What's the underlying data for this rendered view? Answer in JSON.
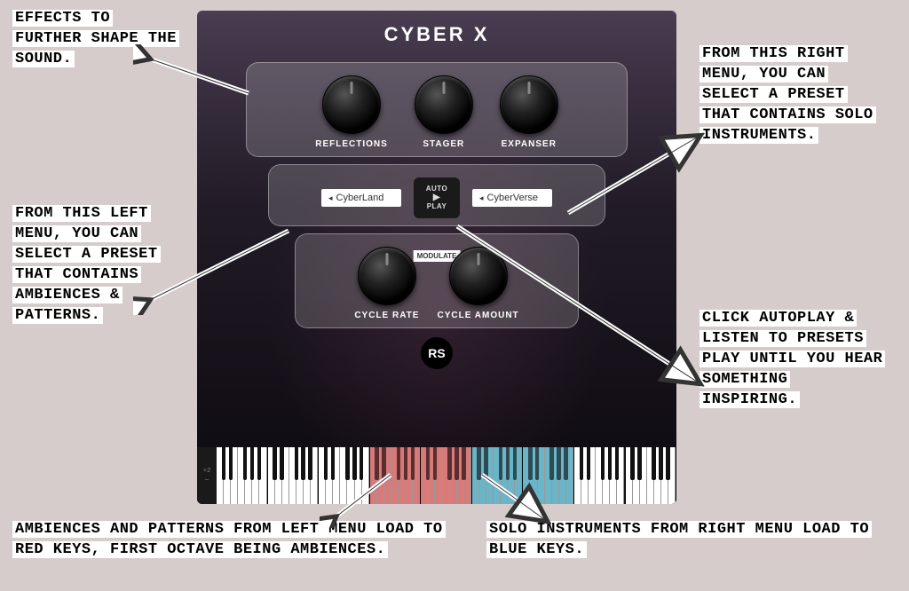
{
  "colors": {
    "page_bg": "#d6cccc",
    "plugin_bg_top": "#4a3d52",
    "plugin_bg_bottom": "#1a1420",
    "panel_bg": "rgba(255,255,255,0.18)",
    "knob_dark": "#000000",
    "text_white": "#ffffff",
    "key_white": "#ffffff",
    "key_red": "#d67a7a",
    "key_blue": "#6bb5c9",
    "anno_bg": "#ffffff",
    "anno_text": "#000000"
  },
  "plugin": {
    "title": "CYBER X",
    "effects": {
      "knobs": [
        {
          "label": "REFLECTIONS"
        },
        {
          "label": "STAGER"
        },
        {
          "label": "EXPANSER"
        }
      ]
    },
    "presets": {
      "left_preset": "CyberLand",
      "right_preset": "CyberVerse",
      "autoplay_top": "AUTO",
      "autoplay_bottom": "PLAY"
    },
    "cycle": {
      "modulate_label": "MODULATE",
      "knobs": [
        {
          "label": "CYCLE RATE"
        },
        {
          "label": "CYCLE AMOUNT"
        }
      ]
    },
    "logo": "RS",
    "keyboard": {
      "side_labels": [
        "+2",
        "—"
      ],
      "octaves": 9,
      "red_octaves": [
        3,
        4
      ],
      "blue_octaves": [
        5,
        6
      ]
    }
  },
  "annotations": {
    "effects": "Effects to further shape the sound.",
    "left_menu": "From this left menu, you can select a preset that contains ambiences & patterns.",
    "right_menu": "From this right menu, you can select a preset that contains solo instruments.",
    "autoplay": "Click autoplay & listen to presets play until you hear something inspiring.",
    "red_keys": "Ambiences and patterns from left menu load to red keys, first octave being ambiences.",
    "blue_keys": "Solo instruments from right menu load to blue keys."
  }
}
